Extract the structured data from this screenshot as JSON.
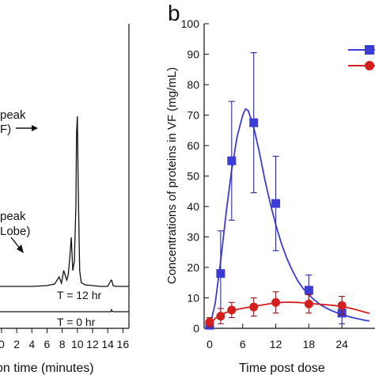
{
  "chart_data": [
    {
      "panel_label": "",
      "type": "line",
      "xlabel": "on time (minutes)",
      "xlim": [
        -0.2,
        16.8
      ],
      "x_ticks": [
        "0",
        "2",
        "4",
        "6",
        "8",
        "10",
        "12",
        "14",
        "16"
      ],
      "x_tick_values": [
        0,
        2,
        4,
        6,
        8,
        10,
        12,
        14,
        16
      ],
      "annotations": [
        {
          "text": "peak",
          "target_x": 10.0
        },
        {
          "text": "F)",
          "target_x": 10.0
        },
        {
          "text": "peak",
          "target_x": 9.3
        },
        {
          "text": "Lobe)",
          "target_x": 9.3
        }
      ],
      "trace_labels": [
        "T = 12 hr",
        "T = 0 hr"
      ],
      "series": [
        {
          "label": "T = 12 hr",
          "baseline": 1.0,
          "x": [
            -0.2,
            2,
            4,
            6,
            7,
            7.6,
            7.9,
            8.2,
            8.6,
            8.8,
            9.0,
            9.2,
            9.4,
            9.6,
            9.8,
            9.9,
            10.0,
            10.1,
            10.3,
            10.5,
            11,
            12,
            13,
            14,
            14.45,
            14.55,
            14.7,
            15,
            16,
            16.8
          ],
          "y": [
            1.0,
            1.0,
            1.0,
            1.1,
            1.3,
            2.2,
            1.4,
            3.0,
            1.8,
            2.5,
            4.6,
            7.2,
            3.0,
            4.2,
            11.0,
            20.5,
            22.5,
            14.0,
            3.0,
            1.5,
            1.2,
            1.1,
            1.0,
            1.0,
            1.8,
            1.7,
            1.1,
            1.0,
            1.0,
            1.0
          ]
        },
        {
          "label": "T = 0 hr",
          "baseline": 0.0,
          "x": [
            -0.2,
            4,
            8,
            12,
            14.4,
            14.5,
            14.6,
            14.8,
            16.8
          ],
          "y": [
            0.0,
            0.0,
            0.0,
            0.0,
            0.0,
            0.25,
            0.05,
            0.0,
            0.0
          ]
        }
      ]
    },
    {
      "panel_label": "b",
      "type": "line",
      "xlabel": "Time post dose",
      "ylabel": "Concentrations of proteins in VF (mg/mL)",
      "xlim": [
        -1,
        30
      ],
      "ylim": [
        0,
        100
      ],
      "x_ticks": [
        "0",
        "6",
        "12",
        "18",
        "24"
      ],
      "x_tick_values": [
        0,
        6,
        12,
        18,
        24
      ],
      "y_ticks": [
        "0",
        "10",
        "20",
        "30",
        "40",
        "50",
        "60",
        "70",
        "80",
        "90",
        "100"
      ],
      "y_tick_values": [
        0,
        10,
        20,
        30,
        40,
        50,
        60,
        70,
        80,
        90,
        100
      ],
      "series": [
        {
          "color": "#3b3bd6",
          "marker": "square",
          "x": [
            0,
            2,
            4,
            8,
            12,
            18,
            24
          ],
          "y": [
            1.0,
            18.0,
            55.0,
            67.5,
            41.0,
            12.5,
            5.0
          ],
          "err": [
            1.0,
            14.0,
            19.5,
            23.0,
            15.5,
            5.0,
            3.5
          ],
          "fit_x": [
            0,
            1,
            2,
            3,
            4,
            5,
            6,
            6.5,
            7,
            8,
            9,
            10,
            11,
            12,
            13,
            14,
            15,
            16,
            17,
            18,
            19,
            20,
            21,
            22,
            23,
            24,
            25,
            26,
            27,
            28,
            29
          ],
          "fit_y": [
            0.5,
            8,
            22,
            38,
            52,
            63,
            70,
            72,
            71.5,
            66,
            58,
            49,
            41,
            34,
            28,
            23,
            19,
            15.5,
            13,
            11,
            9.3,
            7.9,
            6.8,
            5.9,
            5.2,
            4.6,
            4.0,
            3.5,
            3.1,
            2.7,
            2.4
          ]
        },
        {
          "color": "#d41f1f",
          "marker": "circle",
          "x": [
            0,
            2,
            4,
            8,
            12,
            18,
            24
          ],
          "y": [
            2.0,
            4.0,
            6.0,
            7.0,
            8.5,
            8.0,
            7.5
          ],
          "err": [
            1.5,
            2.5,
            2.5,
            3.0,
            3.5,
            3.0,
            3.0
          ],
          "fit_x": [
            0,
            1,
            2,
            3,
            4,
            6,
            8,
            10,
            12,
            14,
            16,
            18,
            20,
            22,
            24,
            26,
            28,
            29
          ],
          "fit_y": [
            1.5,
            3.2,
            4.4,
            5.2,
            5.8,
            6.6,
            7.2,
            7.8,
            8.4,
            8.6,
            8.5,
            8.2,
            7.9,
            7.6,
            7.2,
            6.4,
            5.4,
            4.9
          ]
        }
      ]
    }
  ]
}
